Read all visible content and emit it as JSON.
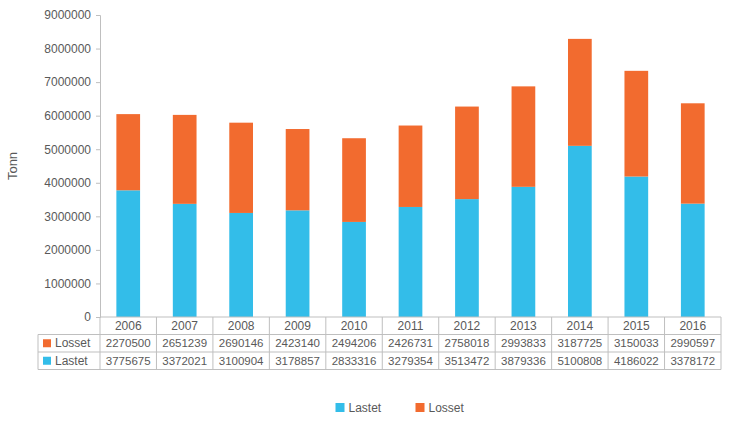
{
  "chart_data": {
    "type": "bar",
    "stacked": true,
    "y_label": "Tonn",
    "categories": [
      "2006",
      "2007",
      "2008",
      "2009",
      "2010",
      "2011",
      "2012",
      "2013",
      "2014",
      "2015",
      "2016"
    ],
    "series": [
      {
        "name": "Lastet",
        "color": "#33bde9",
        "values": [
          3775675,
          3372021,
          3100904,
          3178857,
          2833316,
          3279354,
          3513472,
          3879336,
          5100808,
          4186022,
          3378172
        ]
      },
      {
        "name": "Losset",
        "color": "#f26b2f",
        "values": [
          2270500,
          2651239,
          2690146,
          2423140,
          2494206,
          2426731,
          2758018,
          2993833,
          3187725,
          3150033,
          2990597
        ]
      }
    ],
    "ylim": [
      0,
      9000000
    ],
    "yticks": [
      0,
      1000000,
      2000000,
      3000000,
      4000000,
      5000000,
      6000000,
      7000000,
      8000000,
      9000000
    ],
    "grid": false,
    "legend": "bottom"
  }
}
